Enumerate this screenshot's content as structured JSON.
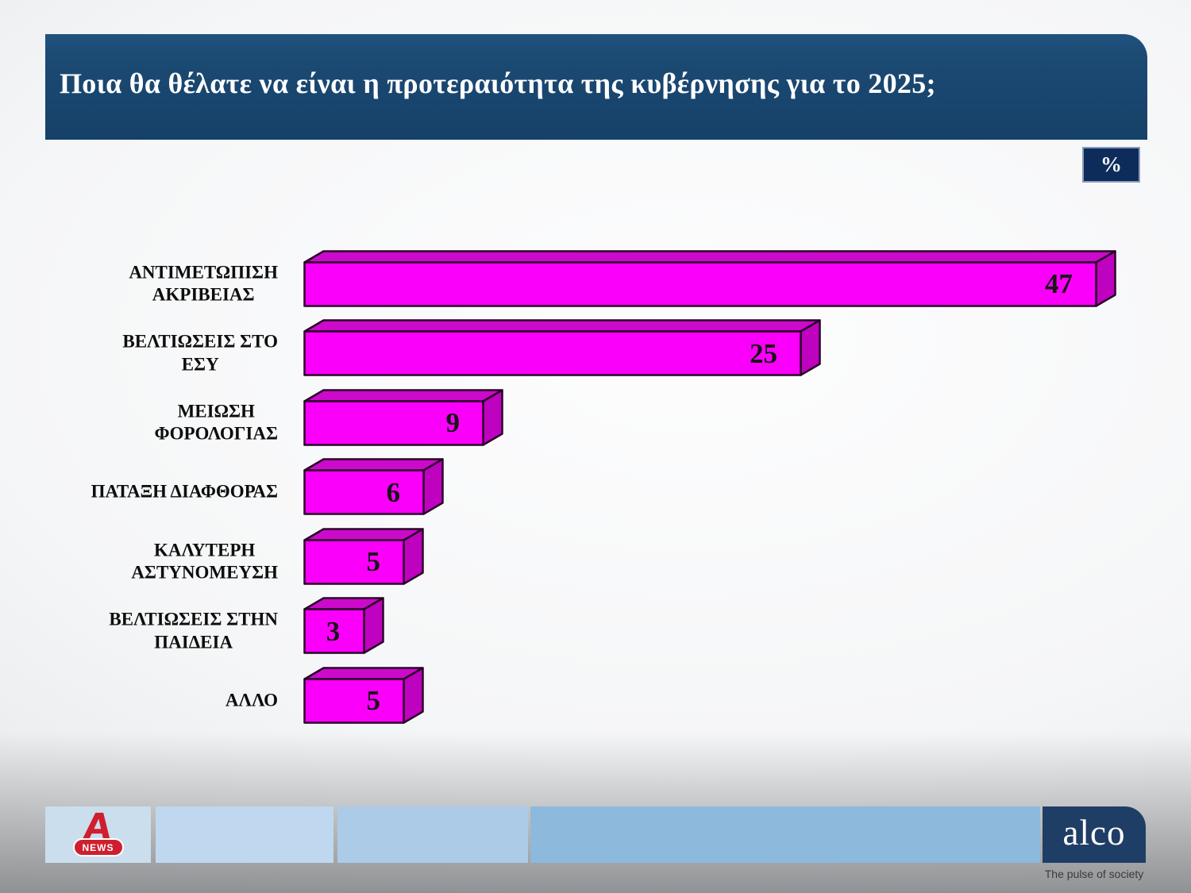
{
  "header": {
    "title": "Ποια θα θέλατε να είναι η προτεραιότητα της κυβέρνησης για το 2025;"
  },
  "unit_badge": {
    "label": "%"
  },
  "chart_data": {
    "type": "bar",
    "orientation": "horizontal",
    "style": "3d-extruded",
    "unit": "%",
    "title": "Ποια θα θέλατε να είναι η προτεραιότητα της κυβέρνησης για το 2025;",
    "categories": [
      "ΑΝΤΙΜΕΤΩΠΙΣΗ ΑΚΡΙΒΕΙΑΣ",
      "ΒΕΛΤΙΩΣΕΙΣ ΣΤΟ ΕΣΥ",
      "ΜΕΙΩΣΗ ΦΟΡΟΛΟΓΙΑΣ",
      "ΠΑΤΑΞΗ ΔΙΑΦΘΟΡΑΣ",
      "ΚΑΛΥΤΕΡΗ ΑΣΤΥΝΟΜΕΥΣΗ",
      "ΒΕΛΤΙΩΣΕΙΣ ΣΤΗΝ ΠΑΙΔΕΙΑ",
      "ΑΛΛΟ"
    ],
    "category_lines": [
      [
        "ΑΝΤΙΜΕΤΩΠΙΣΗ",
        "ΑΚΡΙΒΕΙΑΣ"
      ],
      [
        "ΒΕΛΤΙΩΣΕΙΣ ΣΤΟ",
        "ΕΣΥ"
      ],
      [
        "ΜΕΙΩΣΗ",
        "ΦΟΡΟΛΟΓΙΑΣ"
      ],
      [
        "ΠΑΤΑΞΗ ΔΙΑΦΘΟΡΑΣ"
      ],
      [
        "ΚΑΛΥΤΕΡΗ",
        "ΑΣΤΥΝΟΜΕΥΣΗ"
      ],
      [
        "ΒΕΛΤΙΩΣΕΙΣ ΣΤΗΝ",
        "ΠΑΙΔΕΙΑ"
      ],
      [
        "ΑΛΛΟ"
      ]
    ],
    "values": [
      47,
      25,
      9,
      6,
      5,
      3,
      5
    ],
    "value_labels_position": "inside-end",
    "axis_visible": false,
    "grid": false,
    "legend": false,
    "bar_face_color": "#fa00fa",
    "bar_top_color": "#cb0acb",
    "bar_side_color": "#bf02bf",
    "bar_edge_color": "#2a0028"
  },
  "footer": {
    "alpha_news": {
      "letter": "A",
      "badge": "NEWS"
    },
    "alco": {
      "brand": "alco",
      "tagline": "The pulse of society"
    }
  },
  "colors": {
    "header_bg": "#1b4a73",
    "badge_bg": "#0e2c5a",
    "alpha_red": "#cf1f2e",
    "alco_bg": "#1f3e66",
    "footer_blues": [
      "#cadeee",
      "#bfd8ef",
      "#abcbe7",
      "#8db9dd"
    ]
  }
}
